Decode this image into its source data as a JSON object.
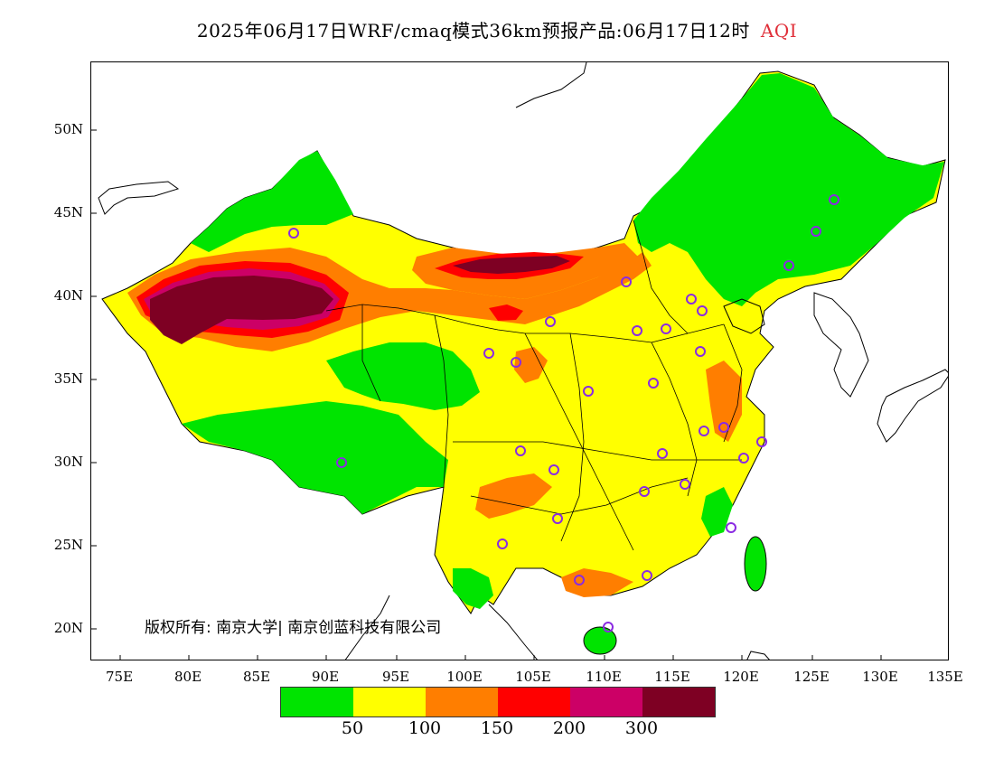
{
  "title": "2025年06月17日WRF/cmaq模式36km预报产品:06月17日12时",
  "title_variable": "AQI",
  "copyright": "版权所有: 南京大学| 南京创蓝科技有限公司",
  "lat_labels": [
    "50N",
    "45N",
    "40N",
    "35N",
    "30N",
    "25N",
    "20N"
  ],
  "lon_labels": [
    "75E",
    "80E",
    "85E",
    "90E",
    "95E",
    "100E",
    "105E",
    "110E",
    "115E",
    "120E",
    "125E",
    "130E",
    "135E"
  ],
  "legend": {
    "colors": [
      "#00e400",
      "#ffff00",
      "#ff7e00",
      "#ff0000",
      "#cc0066",
      "#7e0023"
    ],
    "tick_labels": [
      "50",
      "100",
      "150",
      "200",
      "300"
    ]
  },
  "colors": {
    "green": "#00e400",
    "yellow": "#ffff00",
    "orange": "#ff7e00",
    "red": "#ff0000",
    "purple": "#cc0066",
    "maroon": "#7e0023",
    "station": "#8a2be2",
    "title_accent": "#e0303a"
  }
}
